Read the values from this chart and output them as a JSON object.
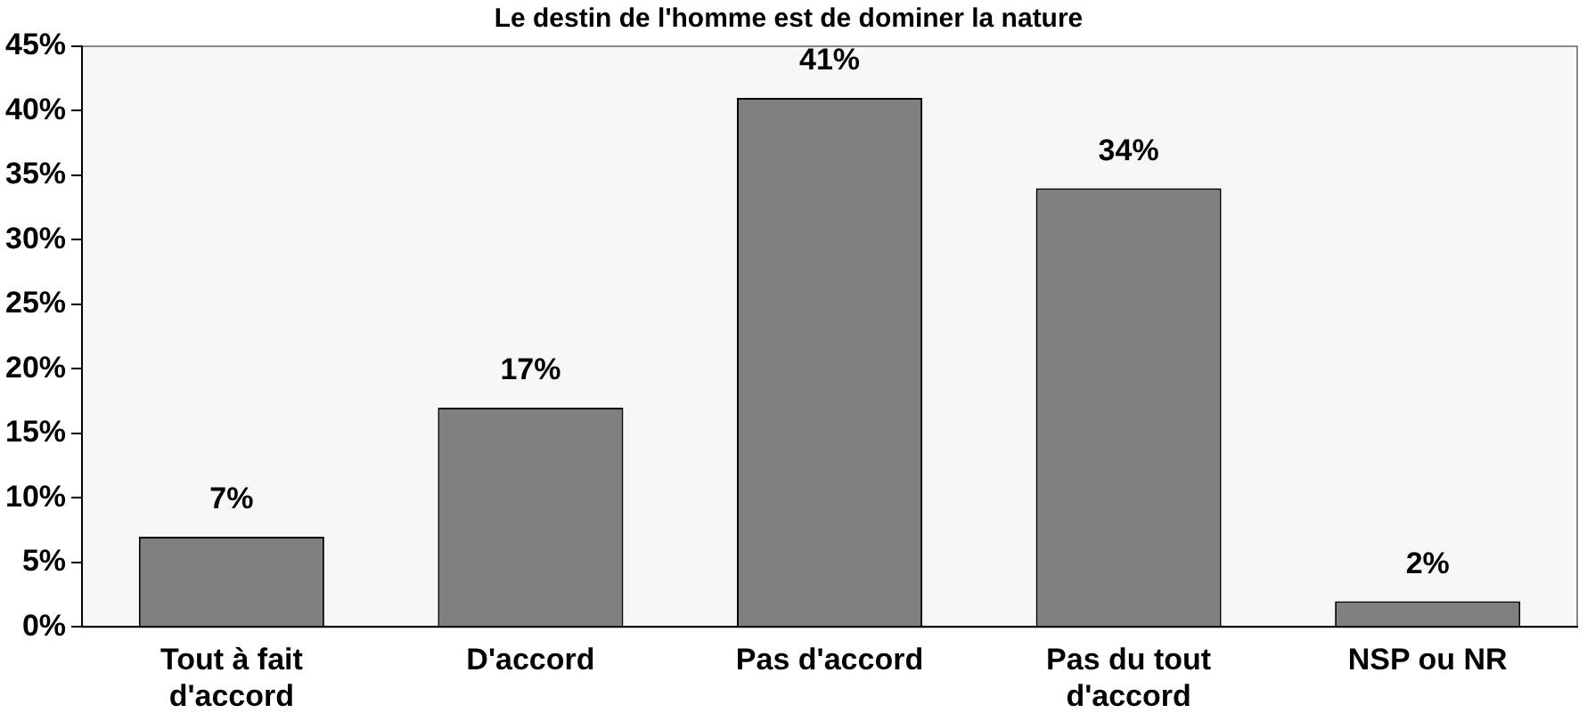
{
  "chart_data": {
    "type": "bar",
    "title": "Le destin de l'homme est de dominer la nature",
    "categories": [
      "Tout à fait d'accord",
      "D'accord",
      "Pas d'accord",
      "Pas du tout d'accord",
      "NSP ou NR"
    ],
    "values": [
      7,
      17,
      41,
      34,
      2
    ],
    "value_labels": [
      "7%",
      "17%",
      "41%",
      "34%",
      "2%"
    ],
    "color": "#808080",
    "ylim": [
      0,
      45
    ],
    "yticks": [
      {
        "value": 0,
        "label": "0%"
      },
      {
        "value": 5,
        "label": "5%"
      },
      {
        "value": 10,
        "label": "10%"
      },
      {
        "value": 15,
        "label": "15%"
      },
      {
        "value": 20,
        "label": "20%"
      },
      {
        "value": 25,
        "label": "25%"
      },
      {
        "value": 30,
        "label": "30%"
      },
      {
        "value": 35,
        "label": "35%"
      },
      {
        "value": 40,
        "label": "40%"
      },
      {
        "value": 45,
        "label": "45%"
      }
    ],
    "grid": false,
    "legend": false
  }
}
